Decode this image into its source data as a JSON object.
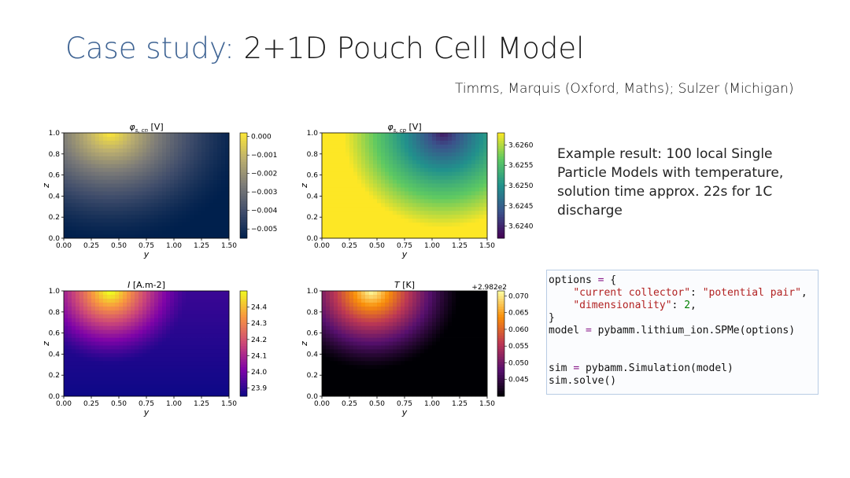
{
  "slide": {
    "title_prefix": "Case study:",
    "title_main": "2+1D Pouch Cell Model",
    "authors": "Timms, Marquis (Oxford, Maths); Sulzer (Michigan)",
    "description": "Example result: 100 local Single Particle Models with temperature, solution time approx. 22s for 1C discharge",
    "colors": {
      "title_accent": "#3e6393"
    }
  },
  "code": {
    "lines": [
      "options = {",
      "    \"current collector\": \"potential pair\",",
      "    \"dimensionality\": 2,",
      "}",
      "model = pybamm.lithium_ion.SPMe(options)",
      "",
      "",
      "sim = pybamm.Simulation(model)",
      "sim.solve()"
    ]
  },
  "chart_data": [
    {
      "type": "heatmap",
      "title": "φs,cn [V]",
      "title_symbol": "φ",
      "title_subscript": "s, cn",
      "title_unit": "[V]",
      "xlabel": "y",
      "ylabel": "z",
      "xlim": [
        0,
        1.5
      ],
      "ylim": [
        0,
        1.0
      ],
      "x_ticks": [
        "0.00",
        "0.25",
        "0.50",
        "0.75",
        "1.00",
        "1.25",
        "1.50"
      ],
      "y_ticks": [
        "0.0",
        "0.2",
        "0.4",
        "0.6",
        "0.8",
        "1.0"
      ],
      "colorbar_ticks": [
        "0.000",
        "−0.001",
        "−0.002",
        "−0.003",
        "−0.004",
        "−0.005"
      ],
      "colorbar_range": [
        -0.0055,
        0.0002
      ],
      "colormap": "cividis",
      "hotspot": {
        "y": 0.42,
        "z": 1.0,
        "value": 0.0
      }
    },
    {
      "type": "heatmap",
      "title": "φs,cp [V]",
      "title_symbol": "φ",
      "title_subscript": "s, cp",
      "title_unit": "[V]",
      "xlabel": "y",
      "ylabel": "z",
      "xlim": [
        0,
        1.5
      ],
      "ylim": [
        0,
        1.0
      ],
      "x_ticks": [
        "0.00",
        "0.25",
        "0.50",
        "0.75",
        "1.00",
        "1.25",
        "1.50"
      ],
      "y_ticks": [
        "0.0",
        "0.2",
        "0.4",
        "0.6",
        "0.8",
        "1.0"
      ],
      "colorbar_ticks": [
        "3.6260",
        "3.6255",
        "3.6250",
        "3.6245",
        "3.6240"
      ],
      "colorbar_range": [
        3.6237,
        3.6263
      ],
      "colormap": "viridis",
      "coldspot": {
        "y": 1.1,
        "z": 1.0,
        "value": 3.6237
      }
    },
    {
      "type": "heatmap",
      "title": "I [A.m-2]",
      "title_symbol": "I",
      "title_unit": "[A.m-2]",
      "xlabel": "y",
      "ylabel": "z",
      "xlim": [
        0,
        1.5
      ],
      "ylim": [
        0,
        1.0
      ],
      "x_ticks": [
        "0.00",
        "0.25",
        "0.50",
        "0.75",
        "1.00",
        "1.25",
        "1.50"
      ],
      "y_ticks": [
        "0.0",
        "0.2",
        "0.4",
        "0.6",
        "0.8",
        "1.0"
      ],
      "colorbar_ticks": [
        "24.4",
        "24.3",
        "24.2",
        "24.1",
        "24.0",
        "23.9"
      ],
      "colorbar_range": [
        23.85,
        24.5
      ],
      "colormap": "plasma",
      "hotspot": {
        "y": 0.42,
        "z": 1.0,
        "value": 24.5
      }
    },
    {
      "type": "heatmap",
      "title": "T [K]",
      "title_symbol": "T",
      "title_unit": "[K]",
      "offset_label": "+2.982e2",
      "xlabel": "y",
      "ylabel": "z",
      "xlim": [
        0,
        1.5
      ],
      "ylim": [
        0,
        1.0
      ],
      "x_ticks": [
        "0.00",
        "0.25",
        "0.50",
        "0.75",
        "1.00",
        "1.25",
        "1.50"
      ],
      "y_ticks": [
        "0.0",
        "0.2",
        "0.4",
        "0.6",
        "0.8",
        "1.0"
      ],
      "colorbar_ticks": [
        "0.070",
        "0.065",
        "0.060",
        "0.055",
        "0.050",
        "0.045"
      ],
      "colorbar_range": [
        0.04,
        0.0715
      ],
      "colormap": "inferno",
      "hotspot": {
        "y": 0.45,
        "z": 1.0,
        "value": 0.0715
      }
    }
  ]
}
